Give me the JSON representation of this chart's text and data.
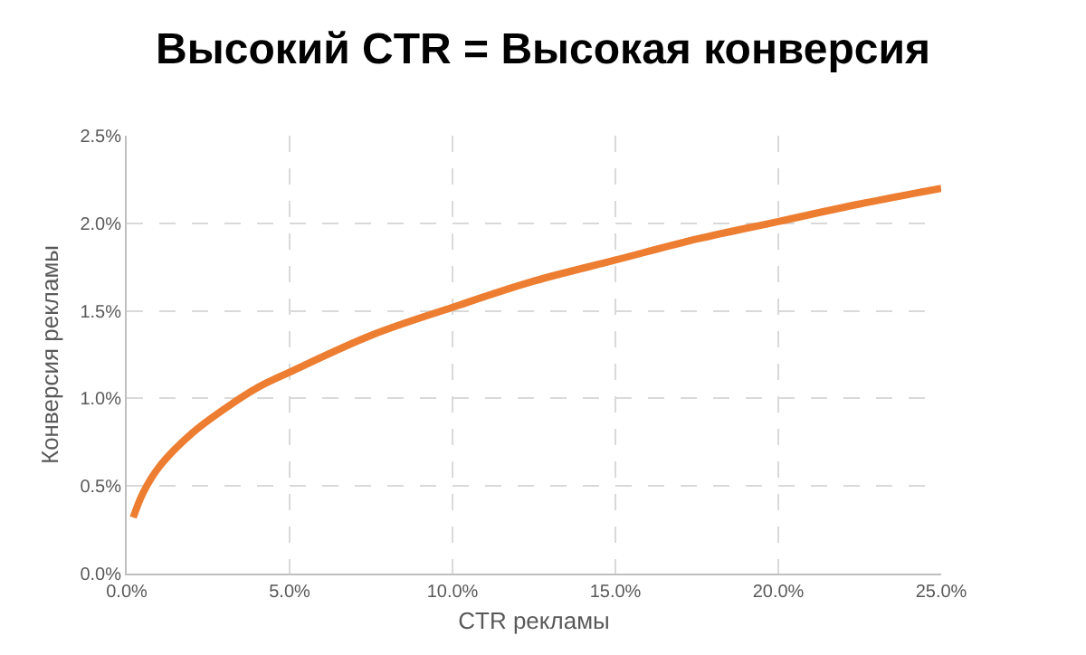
{
  "chart_data": {
    "type": "line",
    "title": "Высокий CTR = Высокая конверсия",
    "xlabel": "CTR рекламы",
    "ylabel": "Конверсия рекламы",
    "series": [
      {
        "color": "#ed7d31",
        "x": [
          0.2,
          0.5,
          1,
          2,
          3,
          4,
          5,
          7.5,
          10,
          12.5,
          15,
          17.5,
          20,
          22.5,
          25
        ],
        "values": [
          0.32,
          0.46,
          0.61,
          0.8,
          0.94,
          1.06,
          1.15,
          1.36,
          1.52,
          1.67,
          1.79,
          1.91,
          2.01,
          2.11,
          2.2
        ]
      }
    ],
    "xlim": [
      0,
      25
    ],
    "ylim": [
      0,
      2.5
    ],
    "xticks": [
      {
        "value": 0,
        "label": "0.0%"
      },
      {
        "value": 5,
        "label": "5.0%"
      },
      {
        "value": 10,
        "label": "10.0%"
      },
      {
        "value": 15,
        "label": "15.0%"
      },
      {
        "value": 20,
        "label": "20.0%"
      },
      {
        "value": 25,
        "label": "25.0%"
      }
    ],
    "yticks": [
      {
        "value": 0,
        "label": "0.0%"
      },
      {
        "value": 0.5,
        "label": "0.5%"
      },
      {
        "value": 1,
        "label": "1.0%"
      },
      {
        "value": 1.5,
        "label": "1.5%"
      },
      {
        "value": 2,
        "label": "2.0%"
      },
      {
        "value": 2.5,
        "label": "2.5%"
      }
    ],
    "grid": true,
    "marker": "none",
    "line_style": "solid"
  }
}
